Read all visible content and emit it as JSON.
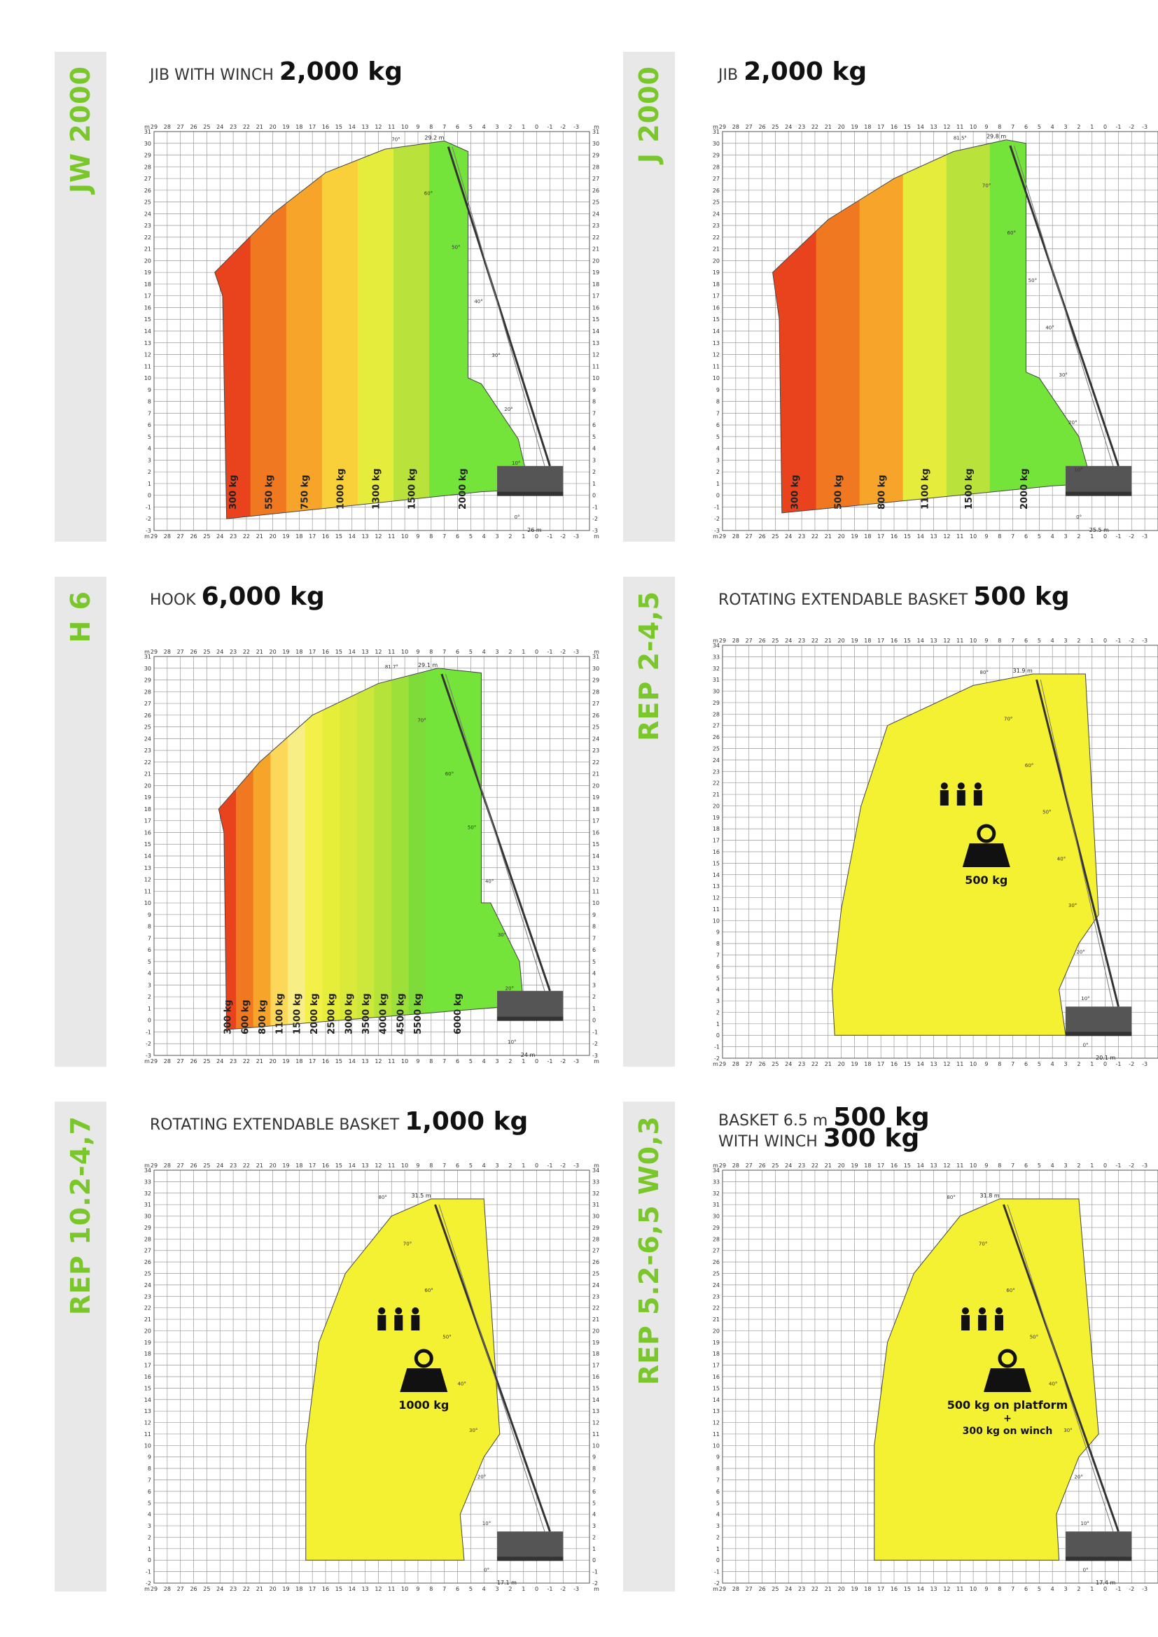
{
  "panels": [
    {
      "code": "JW 2000",
      "title_prefix": "JIB WITH WINCH",
      "title_value": "2,000 kg",
      "chart_data": {
        "type": "area",
        "title": "JIB WITH WINCH 2,000 kg",
        "xlabel": "m",
        "ylabel": "m",
        "xlim": [
          29,
          -4
        ],
        "ylim": [
          -3,
          31
        ],
        "x_ticks": [
          "29",
          "28",
          "27",
          "26",
          "25",
          "24",
          "23",
          "22",
          "21",
          "20",
          "19",
          "18",
          "17",
          "16",
          "15",
          "14",
          "13",
          "12",
          "11",
          "10",
          "9",
          "8",
          "7",
          "6",
          "5",
          "4",
          "3",
          "2",
          "1",
          "0",
          "-1",
          "-2",
          "-3"
        ],
        "zones": [
          {
            "label": "300 kg",
            "color": "#e8431c"
          },
          {
            "label": "550 kg",
            "color": "#f07820"
          },
          {
            "label": "750 kg",
            "color": "#f7a52a"
          },
          {
            "label": "1000 kg",
            "color": "#f9d03a"
          },
          {
            "label": "1300 kg",
            "color": "#e6ec3c"
          },
          {
            "label": "1500 kg",
            "color": "#b9e23a"
          },
          {
            "label": "2000 kg",
            "color": "#74e33a"
          }
        ],
        "envelope": [
          [
            23.5,
            -2
          ],
          [
            23.8,
            17
          ],
          [
            24.4,
            19
          ],
          [
            20,
            24
          ],
          [
            16,
            27.5
          ],
          [
            11.5,
            29.5
          ],
          [
            7,
            30.2
          ],
          [
            5.2,
            29.3
          ],
          [
            5.2,
            10
          ],
          [
            4.2,
            9.5
          ],
          [
            1.4,
            4.8
          ],
          [
            0.5,
            0.5
          ],
          [
            4.2,
            0.3
          ],
          [
            23.5,
            -2
          ]
        ],
        "annotations": [
          "26 m",
          "29.2 m",
          "70°",
          "60°",
          "50°",
          "40°",
          "30°",
          "20°",
          "10°",
          "0°"
        ]
      }
    },
    {
      "code": "J 2000",
      "title_prefix": "JIB",
      "title_value": "2,000 kg",
      "chart_data": {
        "type": "area",
        "title": "JIB 2,000 kg",
        "xlabel": "m",
        "ylabel": "m",
        "xlim": [
          29,
          -4
        ],
        "ylim": [
          -3,
          31
        ],
        "x_ticks": [
          "29",
          "28",
          "27",
          "26",
          "25",
          "24",
          "23",
          "22",
          "21",
          "20",
          "19",
          "18",
          "17",
          "16",
          "15",
          "14",
          "13",
          "12",
          "11",
          "10",
          "9",
          "8",
          "7",
          "6",
          "5",
          "4",
          "3",
          "2",
          "1",
          "0",
          "-1",
          "-2",
          "-3"
        ],
        "zones": [
          {
            "label": "300 kg",
            "color": "#e8431c"
          },
          {
            "label": "500 kg",
            "color": "#f07820"
          },
          {
            "label": "800 kg",
            "color": "#f7a52a"
          },
          {
            "label": "1100 kg",
            "color": "#e6ec3c"
          },
          {
            "label": "1500 kg",
            "color": "#b9e23a"
          },
          {
            "label": "2000 kg",
            "color": "#74e33a"
          }
        ],
        "envelope": [
          [
            24.5,
            -1.5
          ],
          [
            24.7,
            15
          ],
          [
            25.2,
            19
          ],
          [
            21,
            23.5
          ],
          [
            16,
            27
          ],
          [
            11.5,
            29.3
          ],
          [
            7.5,
            30.3
          ],
          [
            6,
            30
          ],
          [
            6,
            10.5
          ],
          [
            5,
            10
          ],
          [
            2,
            5
          ],
          [
            1,
            1
          ],
          [
            4,
            0.8
          ],
          [
            24.5,
            -1.5
          ]
        ],
        "annotations": [
          "25.5 m",
          "29.8 m",
          "81.5°",
          "70°",
          "60°",
          "50°",
          "40°",
          "30°",
          "20°",
          "10°",
          "0°"
        ]
      }
    },
    {
      "code": "H 6",
      "title_prefix": "HOOK",
      "title_value": "6,000 kg",
      "chart_data": {
        "type": "area",
        "title": "HOOK 6,000 kg",
        "xlabel": "m",
        "ylabel": "m",
        "xlim": [
          29,
          -4
        ],
        "ylim": [
          -3,
          31
        ],
        "x_ticks": [
          "29",
          "28",
          "27",
          "26",
          "25",
          "24",
          "23",
          "22",
          "21",
          "20",
          "19",
          "18",
          "17",
          "16",
          "15",
          "14",
          "13",
          "12",
          "11",
          "10",
          "9",
          "8",
          "7",
          "6",
          "5",
          "4",
          "3",
          "2",
          "1",
          "0",
          "-1",
          "-2",
          "-3"
        ],
        "zones": [
          {
            "label": "300 kg",
            "color": "#e8431c"
          },
          {
            "label": "600 kg",
            "color": "#f07820"
          },
          {
            "label": "800 kg",
            "color": "#f7a52a"
          },
          {
            "label": "1100 kg",
            "color": "#fbd85a"
          },
          {
            "label": "1500 kg",
            "color": "#f8ee86"
          },
          {
            "label": "2000 kg",
            "color": "#f4f04a"
          },
          {
            "label": "2500 kg",
            "color": "#e7ee3a"
          },
          {
            "label": "3000 kg",
            "color": "#dbea3a"
          },
          {
            "label": "3500 kg",
            "color": "#cde83a"
          },
          {
            "label": "4000 kg",
            "color": "#b6e33a"
          },
          {
            "label": "4500 kg",
            "color": "#9ee03a"
          },
          {
            "label": "5500 kg",
            "color": "#7fdb3a"
          },
          {
            "label": "6000 kg",
            "color": "#74e33a"
          }
        ],
        "envelope": [
          [
            23.5,
            -0.8
          ],
          [
            23.7,
            16
          ],
          [
            24.1,
            18
          ],
          [
            21,
            22
          ],
          [
            17,
            26
          ],
          [
            12,
            28.7
          ],
          [
            7.5,
            30
          ],
          [
            4.2,
            29.6
          ],
          [
            4.2,
            10
          ],
          [
            3.5,
            10
          ],
          [
            1.3,
            5
          ],
          [
            1,
            1.3
          ],
          [
            4,
            1
          ],
          [
            23.5,
            -0.8
          ]
        ],
        "annotations": [
          "24 m",
          "29.1 m",
          "81.7°",
          "70°",
          "60°",
          "50°",
          "40°",
          "30°",
          "20°",
          "10°"
        ]
      }
    },
    {
      "code": "REP 2-4,5",
      "title_prefix": "ROTATING EXTENDABLE BASKET",
      "title_value": "500 kg",
      "chart_data": {
        "type": "area",
        "title": "ROTATING EXTENDABLE BASKET 500 kg",
        "xlabel": "m",
        "ylabel": "m",
        "xlim": [
          29,
          -4
        ],
        "ylim": [
          -2,
          34
        ],
        "x_ticks": [
          "29",
          "28",
          "27",
          "26",
          "25",
          "24",
          "23",
          "22",
          "21",
          "20",
          "19",
          "18",
          "17",
          "16",
          "15",
          "14",
          "13",
          "12",
          "11",
          "10",
          "9",
          "8",
          "7",
          "6",
          "5",
          "4",
          "3",
          "2",
          "1",
          "0",
          "-1",
          "-2",
          "-3"
        ],
        "zones": [
          {
            "label": "500 kg",
            "color": "#f4f032"
          }
        ],
        "envelope": [
          [
            20.5,
            0
          ],
          [
            20.7,
            4
          ],
          [
            20,
            11
          ],
          [
            18.5,
            20
          ],
          [
            16.5,
            27
          ],
          [
            10,
            30.5
          ],
          [
            5.5,
            31.5
          ],
          [
            1.5,
            31.5
          ],
          [
            0.5,
            10.5
          ],
          [
            2,
            8
          ],
          [
            3.5,
            4
          ],
          [
            3,
            0
          ],
          [
            20.5,
            0
          ]
        ],
        "annotations": [
          "20.1 m",
          "31.9 m",
          "80°",
          "70°",
          "60°",
          "50°",
          "40°",
          "30°",
          "20°",
          "10°",
          "0°"
        ],
        "load_label": "500 kg"
      }
    },
    {
      "code": "REP 10.2-4,7",
      "title_prefix": "ROTATING EXTENDABLE BASKET",
      "title_value": "1,000 kg",
      "chart_data": {
        "type": "area",
        "title": "ROTATING EXTENDABLE BASKET 1,000 kg",
        "xlabel": "m",
        "ylabel": "m",
        "xlim": [
          29,
          -4
        ],
        "ylim": [
          -2,
          34
        ],
        "x_ticks": [
          "29",
          "28",
          "27",
          "26",
          "25",
          "24",
          "23",
          "22",
          "21",
          "20",
          "19",
          "18",
          "17",
          "16",
          "15",
          "14",
          "13",
          "12",
          "11",
          "10",
          "9",
          "8",
          "7",
          "6",
          "5",
          "4",
          "3",
          "2",
          "1",
          "0",
          "-1",
          "-2",
          "-3"
        ],
        "zones": [
          {
            "label": "1000 kg",
            "color": "#f4f032"
          }
        ],
        "envelope": [
          [
            17.5,
            0
          ],
          [
            17.5,
            10
          ],
          [
            16.5,
            19
          ],
          [
            14.5,
            25
          ],
          [
            11,
            30
          ],
          [
            8,
            31.5
          ],
          [
            4,
            31.5
          ],
          [
            2.8,
            11
          ],
          [
            4,
            9
          ],
          [
            5.8,
            4
          ],
          [
            5.5,
            0
          ],
          [
            17.5,
            0
          ]
        ],
        "annotations": [
          "17.1 m",
          "31.5 m",
          "80°",
          "70°",
          "60°",
          "50°",
          "40°",
          "30°",
          "20°",
          "10°",
          "0°"
        ],
        "load_label": "1000 kg"
      }
    },
    {
      "code": "REP 5.2-6,5 W0,3",
      "title_prefix": "BASKET 6.5 m",
      "title_value": "500 kg",
      "title_prefix2": "WITH WINCH",
      "title_value2": "300 kg",
      "chart_data": {
        "type": "area",
        "title": "BASKET 6.5 m 500 kg WITH WINCH 300 kg",
        "xlabel": "m",
        "ylabel": "m",
        "xlim": [
          29,
          -4
        ],
        "ylim": [
          -2,
          34
        ],
        "x_ticks": [
          "29",
          "28",
          "27",
          "26",
          "25",
          "24",
          "23",
          "22",
          "21",
          "20",
          "19",
          "18",
          "17",
          "16",
          "15",
          "14",
          "13",
          "12",
          "11",
          "10",
          "9",
          "8",
          "7",
          "6",
          "5",
          "4",
          "3",
          "2",
          "1",
          "0",
          "-1",
          "-2",
          "-3"
        ],
        "zones": [
          {
            "label": "500 kg on platform + 300 kg on winch",
            "color": "#f4f032"
          }
        ],
        "envelope": [
          [
            17.5,
            0
          ],
          [
            17.5,
            10
          ],
          [
            16.5,
            19
          ],
          [
            14.5,
            25
          ],
          [
            11,
            30
          ],
          [
            8,
            31.5
          ],
          [
            2,
            31.5
          ],
          [
            0.5,
            11
          ],
          [
            2,
            9
          ],
          [
            3.7,
            4
          ],
          [
            3.5,
            0
          ],
          [
            17.5,
            0
          ]
        ],
        "annotations": [
          "17.4 m",
          "31.8 m",
          "80°",
          "70°",
          "60°",
          "50°",
          "40°",
          "30°",
          "20°",
          "10°",
          "0°"
        ],
        "load_label": "500 kg on platform",
        "load_label2": "+",
        "load_label3": "300 kg on winch"
      }
    }
  ]
}
